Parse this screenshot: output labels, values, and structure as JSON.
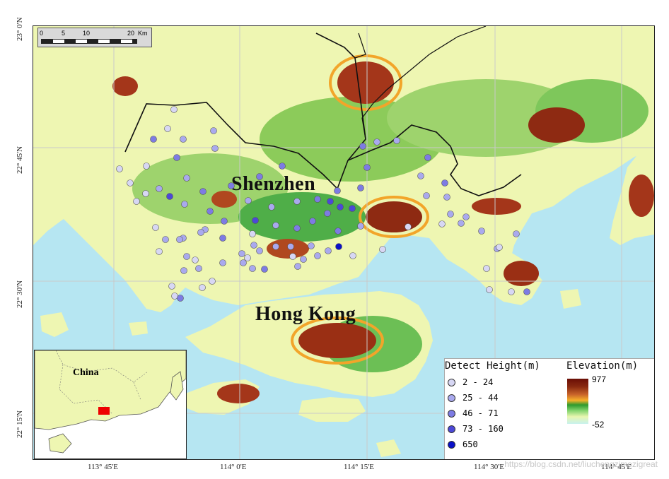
{
  "places": {
    "shenzhen": "Shenzhen",
    "hong_kong": "Hong Kong",
    "china": "China"
  },
  "scalebar": {
    "ticks": [
      "0",
      "5",
      "10",
      "20"
    ],
    "unit": "Km"
  },
  "ticks": {
    "left": [
      "23° 0'N",
      "22° 45'N",
      "22° 30'N",
      "22° 15'N"
    ],
    "bottom": [
      "113° 45'E",
      "114° 0'E",
      "114° 15'E",
      "114° 30'E",
      "114° 45'E"
    ]
  },
  "legend": {
    "detect_title": "Detect Height(m)",
    "elev_title": "Elevation(m)",
    "classes": [
      {
        "label": "2 - 24",
        "color": "#d7d7f4"
      },
      {
        "label": "25 - 44",
        "color": "#a9a9ee"
      },
      {
        "label": "46 - 71",
        "color": "#7d7be3"
      },
      {
        "label": "73 - 160",
        "color": "#4c48d8"
      },
      {
        "label": "650",
        "color": "#0a10c8"
      }
    ],
    "elev_max": "977",
    "elev_min": "-52"
  },
  "watermark": "https://blog.csdn.net/liuchengzimozigreat",
  "colors": {
    "sea": "#b6e6f2",
    "lowland": "#eef6b2",
    "green": "#3da34a",
    "mountain": "#a4361a",
    "grid": "#c9c9c9",
    "boundary": "#111111"
  }
}
